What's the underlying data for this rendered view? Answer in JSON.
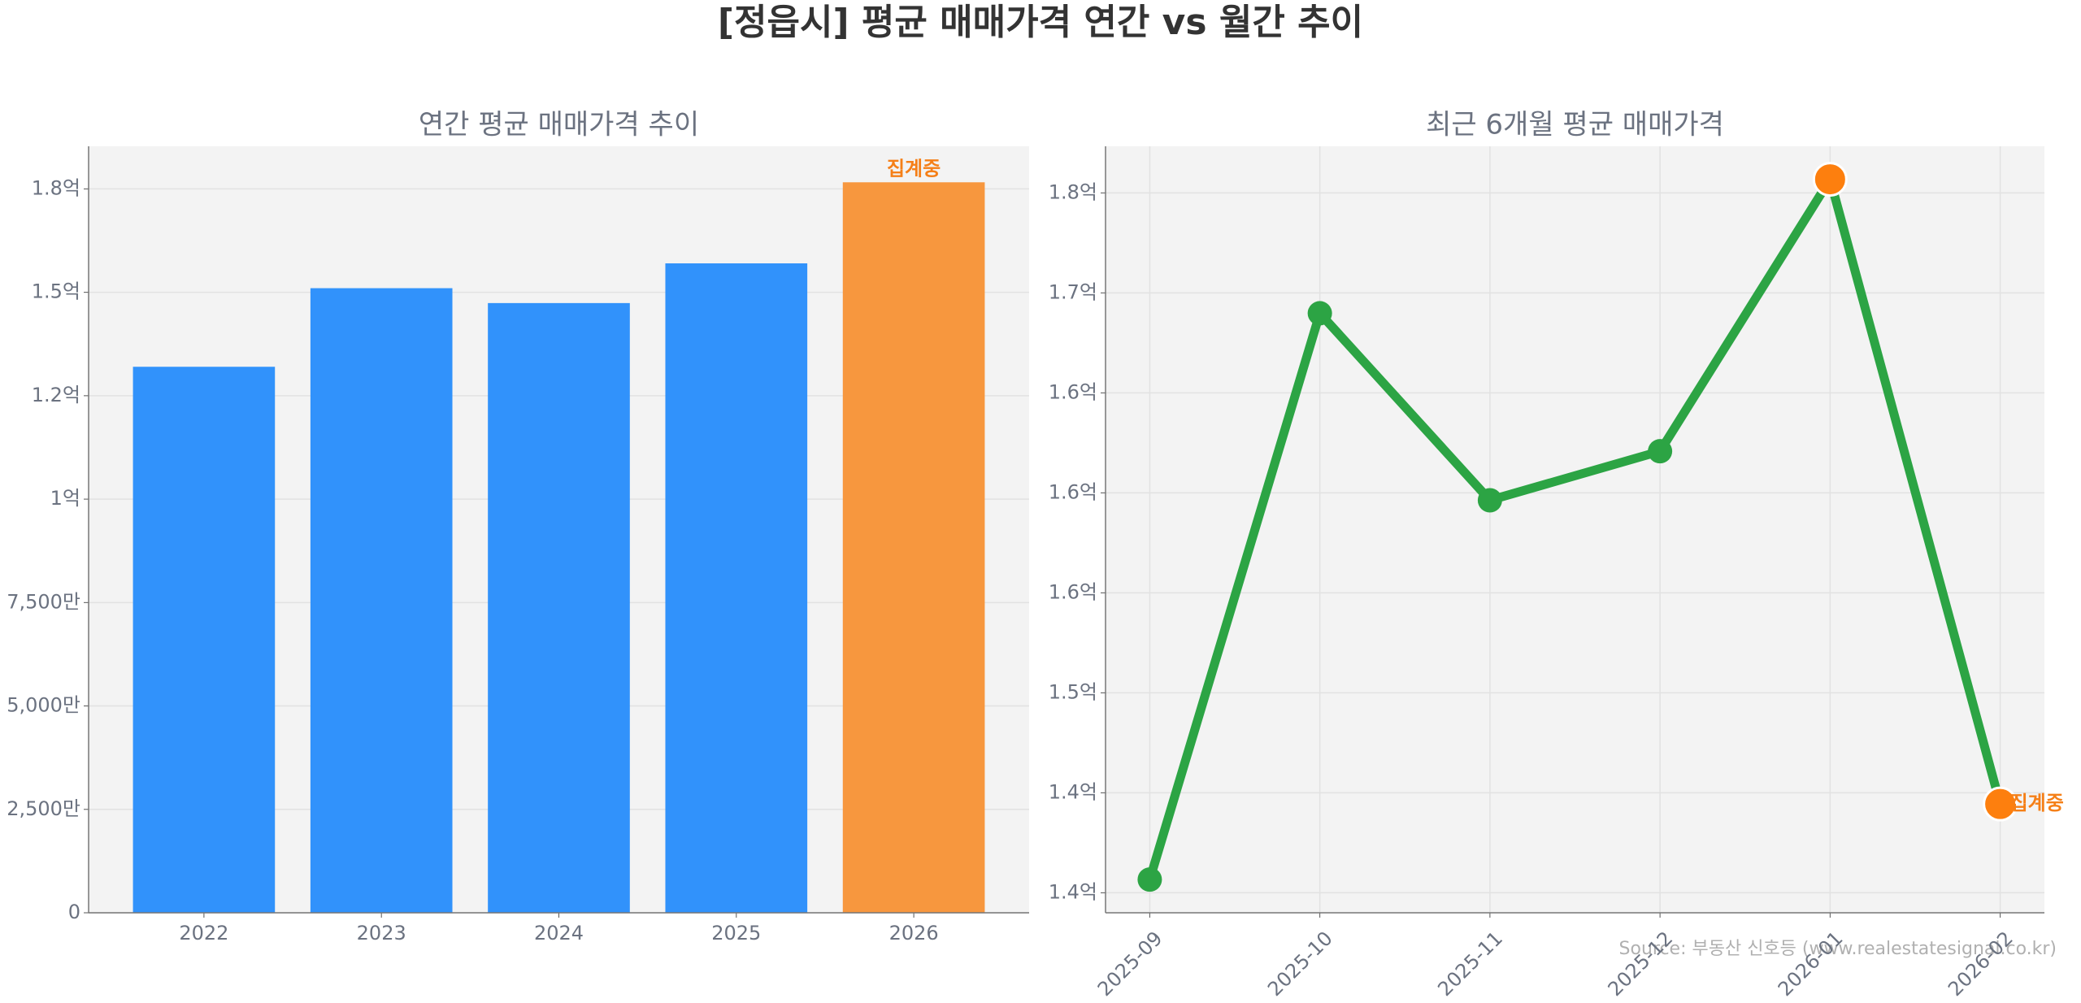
{
  "title": "[정읍시] 평균 매매가격 연간 vs 월간 추이",
  "source": "Source: 부동산 신호등 (www.realestatesignal.co.kr)",
  "chart_data": [
    {
      "type": "bar",
      "title": "연간 평균 매매가격 추이",
      "categories": [
        "2022",
        "2023",
        "2024",
        "2025",
        "2026"
      ],
      "values": [
        132000000,
        151000000,
        147400000,
        157000000,
        176600000
      ],
      "colors": [
        "#3192fb",
        "#3192fb",
        "#3192fb",
        "#3192fb",
        "#f7973e"
      ],
      "annotation": {
        "text": "집계중",
        "category": "2026",
        "color": "#f57f17"
      },
      "ylim": [
        0,
        185300000
      ],
      "yticks": [
        0,
        {
          "value": 25000000,
          "label": "2,500만"
        },
        {
          "value": 50000000,
          "label": "5,000만"
        },
        {
          "value": 75000000,
          "label": "7,500만"
        },
        {
          "value": 100000000,
          "label": "1억"
        },
        {
          "value": 125000000,
          "label": "1.2억"
        },
        {
          "value": 150000000,
          "label": "1.5억"
        },
        {
          "value": 175000000,
          "label": "1.8억"
        }
      ],
      "grid": true
    },
    {
      "type": "line",
      "title": "최근 6개월 평균 매매가격",
      "categories": [
        "2025-09",
        "2025-10",
        "2025-11",
        "2025-12",
        "2026-01",
        "2026-02"
      ],
      "values": [
        140660000,
        168980000,
        159630000,
        162080000,
        175680000,
        144440000
      ],
      "color": "#2ca444",
      "marker_colors": [
        "#2ca444",
        "#2ca444",
        "#2ca444",
        "#2ca444",
        "#fd7f0e",
        "#fd7f0e"
      ],
      "annotation": {
        "text": "집계중",
        "category": "2026-02",
        "color": "#f57f17"
      },
      "ylim": [
        139000000,
        177330000
      ],
      "yticks": [
        {
          "value": 140000000,
          "label": "1.4억"
        },
        {
          "value": 145000000,
          "label": "1.4억"
        },
        {
          "value": 150000000,
          "label": "1.5억"
        },
        {
          "value": 155000000,
          "label": "1.6억"
        },
        {
          "value": 160000000,
          "label": "1.6억"
        },
        {
          "value": 165000000,
          "label": "1.6억"
        },
        {
          "value": 170000000,
          "label": "1.7억"
        },
        {
          "value": 175000000,
          "label": "1.8억"
        }
      ],
      "grid": true
    }
  ]
}
